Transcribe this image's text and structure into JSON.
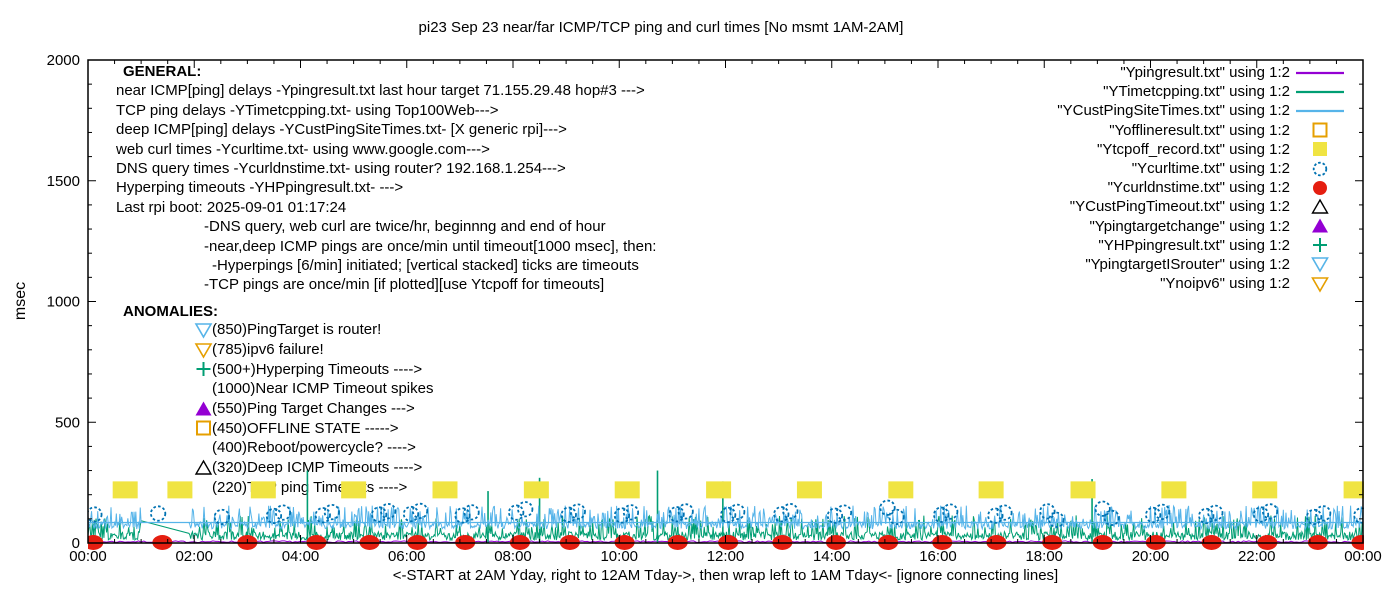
{
  "title": "pi23 Sep 23  near/far ICMP/TCP ping and curl times [No msmt 1AM-2AM]",
  "general": {
    "heading": "GENERAL:",
    "lines": [
      {
        "text": "near ICMP[ping] delays -Ypingresult.txt last hour target 71.155.29.48 hop#3 --->",
        "indent": 0
      },
      {
        "text": "TCP ping delays -YTimetcpping.txt- using Top100Web--->",
        "indent": 0
      },
      {
        "text": "deep ICMP[ping] delays -YCustPingSiteTimes.txt- [X generic rpi]--->",
        "indent": 0
      },
      {
        "text": "web curl times -Ycurltime.txt- using www.google.com--->",
        "indent": 0
      },
      {
        "text": "DNS query times -Ycurldnstime.txt- using router? 192.168.1.254--->",
        "indent": 0
      },
      {
        "text": "Hyperping timeouts -YHPpingresult.txt- --->",
        "indent": 0
      },
      {
        "text": "Last rpi boot: 2025-09-01 01:17:24",
        "indent": 0
      },
      {
        "text": "-DNS query, web curl are twice/hr, beginnng and end of hour",
        "indent": 1
      },
      {
        "text": "-near,deep ICMP pings are once/min until timeout[1000 msec], then:",
        "indent": 1
      },
      {
        "text": "-Hyperpings [6/min] initiated; [vertical stacked] ticks are timeouts",
        "indent": 2
      },
      {
        "text": "-TCP pings are once/min [if plotted][use Ytcpoff for timeouts]",
        "indent": 1
      }
    ]
  },
  "anomalies": {
    "heading": "ANOMALIES:",
    "items": [
      {
        "marker": "tri-down-open",
        "color": "#56B4E9",
        "label": "(850)PingTarget is router!"
      },
      {
        "marker": "tri-down-open",
        "color": "#E69F00",
        "label": "(785)ipv6 failure!"
      },
      {
        "marker": "plus",
        "color": "#009E73",
        "label": "(500+)Hyperping Timeouts ---->"
      },
      {
        "marker": "none",
        "color": "#000000",
        "label": "(1000)Near ICMP Timeout spikes"
      },
      {
        "marker": "tri-up-filled",
        "color": "#9400D3",
        "label": "(550)Ping Target Changes --->"
      },
      {
        "marker": "square-open",
        "color": "#E69F00",
        "label": "(450)OFFLINE STATE ----->"
      },
      {
        "marker": "none",
        "color": "#000000",
        "label": "(400)Reboot/powercycle? ---->"
      },
      {
        "marker": "tri-up-open",
        "color": "#000000",
        "label": "(320)Deep ICMP Timeouts ---->"
      },
      {
        "marker": "none",
        "color": "#000000",
        "label": "(220)TCP ping Timeouts ---->"
      }
    ]
  },
  "chart_data": {
    "type": "line",
    "title": "pi23 Sep 23  near/far ICMP/TCP ping and curl times [No msmt 1AM-2AM]",
    "xlabel": "<-START at 2AM Yday, right to 12AM Tday->, then wrap left to 1AM Tday<- [ignore connecting lines]",
    "ylabel": "msec",
    "ylim": [
      0,
      2000
    ],
    "x_range_hours": [
      0,
      24
    ],
    "grid": false,
    "legend_position": "top-right",
    "no_measurement_window": "1AM-2AM",
    "x_ticks": [
      {
        "h": 0,
        "label": "00:00"
      },
      {
        "h": 2,
        "label": "02:00"
      },
      {
        "h": 4,
        "label": "04:00"
      },
      {
        "h": 6,
        "label": "06:00"
      },
      {
        "h": 8,
        "label": "08:00"
      },
      {
        "h": 10,
        "label": "10:00"
      },
      {
        "h": 12,
        "label": "12:00"
      },
      {
        "h": 14,
        "label": "14:00"
      },
      {
        "h": 16,
        "label": "16:00"
      },
      {
        "h": 18,
        "label": "18:00"
      },
      {
        "h": 20,
        "label": "20:00"
      },
      {
        "h": 22,
        "label": "22:00"
      },
      {
        "h": 24,
        "label": "00:00"
      }
    ],
    "y_ticks": [
      {
        "v": 0,
        "label": "0"
      },
      {
        "v": 500,
        "label": "500"
      },
      {
        "v": 1000,
        "label": "1000"
      },
      {
        "v": 1500,
        "label": "1500"
      },
      {
        "v": 2000,
        "label": "2000"
      }
    ],
    "series": [
      {
        "id": "near_icmp",
        "legend": "\"Ypingresult.txt\" using 1:2",
        "marker": "line",
        "color": "#9400D3",
        "style": "noisy-line",
        "baseline_msec": 5,
        "noise_msec": 7
      },
      {
        "id": "tcp_ping",
        "legend": "\"YTimetcpping.txt\" using 1:2",
        "marker": "line",
        "color": "#009E73",
        "style": "noisy-line",
        "baseline_msec": 30,
        "spike_max_msec": 115,
        "gap_connector": {
          "from_h": 1.0,
          "from_msec": 92,
          "to_h": 1.9,
          "to_msec": 40
        }
      },
      {
        "id": "deep_icmp",
        "legend": "\"YCustPingSiteTimes.txt\" using 1:2",
        "marker": "line",
        "color": "#56B4E9",
        "style": "noisy-line",
        "baseline_msec": 73,
        "flat_line_msec": 85,
        "spike_max_msec": 155
      },
      {
        "id": "offline",
        "legend": "\"Yofflineresult.txt\" using 1:2",
        "marker": "square-open",
        "color": "#E69F00",
        "style": "points",
        "event_hours": []
      },
      {
        "id": "tcpoff",
        "legend": "\"Ytcpoff_record.txt\" using 1:2",
        "marker": "square-filled",
        "color": "#F0E442",
        "style": "points",
        "value_msec": 220,
        "event_hours": [
          0.7,
          1.73,
          3.3,
          5.0,
          6.72,
          8.44,
          10.15,
          11.87,
          13.58,
          15.3,
          17.0,
          18.73,
          20.44,
          22.15,
          23.87
        ]
      },
      {
        "id": "curl",
        "legend": "\"Ycurltime.txt\" using 1:2",
        "marker": "circle-open",
        "color": "#0072B2",
        "style": "points",
        "events": [
          {
            "h": 0.12,
            "v": [
              118
            ]
          },
          {
            "h": 1.32,
            "v": [
              122
            ]
          },
          {
            "h": 2.52,
            "v": [
              108
            ]
          },
          {
            "h": 3.5,
            "v": [
              112,
              126
            ]
          },
          {
            "h": 4.42,
            "v": [
              115,
              128
            ]
          },
          {
            "h": 5.48,
            "v": [
              118,
              132
            ]
          },
          {
            "h": 6.08,
            "v": [
              120,
              133
            ]
          },
          {
            "h": 7.05,
            "v": [
              114,
              127
            ]
          },
          {
            "h": 8.06,
            "v": [
              126,
              140
            ]
          },
          {
            "h": 9.05,
            "v": [
              117,
              130
            ]
          },
          {
            "h": 10.05,
            "v": [
              114,
              127
            ]
          },
          {
            "h": 11.08,
            "v": [
              119,
              131
            ]
          },
          {
            "h": 12.05,
            "v": [
              116,
              129
            ]
          },
          {
            "h": 13.05,
            "v": [
              119,
              132
            ]
          },
          {
            "h": 14.06,
            "v": [
              113,
              126
            ]
          },
          {
            "h": 15.05,
            "v": [
              146,
              108
            ]
          },
          {
            "h": 16.06,
            "v": [
              117,
              130
            ]
          },
          {
            "h": 17.08,
            "v": [
              113,
              126
            ]
          },
          {
            "h": 18.06,
            "v": [
              131,
              96
            ]
          },
          {
            "h": 19.1,
            "v": [
              142,
              104
            ]
          },
          {
            "h": 20.05,
            "v": [
              116,
              129
            ]
          },
          {
            "h": 21.05,
            "v": [
              112,
              125
            ]
          },
          {
            "h": 22.08,
            "v": [
              118,
              131
            ]
          },
          {
            "h": 23.08,
            "v": [
              108,
              123
            ]
          },
          {
            "h": 23.97,
            "v": [
              114
            ]
          }
        ]
      },
      {
        "id": "dns",
        "legend": "\"Ycurldnstime.txt\" using 1:2",
        "marker": "circle-filled",
        "color": "#E51E10",
        "style": "points",
        "value_msec": 0,
        "event_hours": [
          0.1,
          1.4,
          3.0,
          4.3,
          5.3,
          6.2,
          7.1,
          8.13,
          9.07,
          10.1,
          11.1,
          12.05,
          13.07,
          14.08,
          15.06,
          16.08,
          17.1,
          18.15,
          19.1,
          20.1,
          21.15,
          22.2,
          23.15,
          23.97
        ]
      },
      {
        "id": "deep_timeout",
        "legend": "\"YCustPingTimeout.txt\" using 1:2",
        "marker": "tri-up-open",
        "color": "#000000",
        "style": "points",
        "event_hours": []
      },
      {
        "id": "target_change",
        "legend": "\"Ypingtargetchange\" using 1:2",
        "marker": "tri-up-filled",
        "color": "#9400D3",
        "style": "points",
        "event_hours": []
      },
      {
        "id": "hyperping",
        "legend": "\"YHPpingresult.txt\" using 1:2",
        "marker": "plus",
        "color": "#009E73",
        "style": "impulses",
        "spikes": [
          {
            "h": 4.13,
            "v": 300
          },
          {
            "h": 7.53,
            "v": 215
          },
          {
            "h": 8.5,
            "v": 270
          },
          {
            "h": 10.72,
            "v": 300
          },
          {
            "h": 11.95,
            "v": 255
          },
          {
            "h": 18.9,
            "v": 265
          }
        ]
      },
      {
        "id": "target_is_router",
        "legend": "\"YpingtargetISrouter\" using 1:2",
        "marker": "tri-down-open",
        "color": "#56B4E9",
        "style": "points",
        "event_hours": []
      },
      {
        "id": "noipv6",
        "legend": "\"Ynoipv6\" using 1:2",
        "marker": "tri-down-open",
        "color": "#E69F00",
        "style": "points",
        "event_hours": []
      }
    ]
  }
}
